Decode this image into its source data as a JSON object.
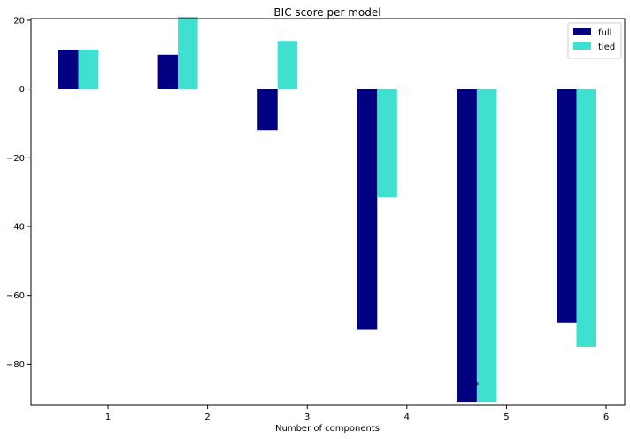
{
  "chart_data": {
    "type": "bar",
    "title": "BIC score per model",
    "xlabel": "Number of components",
    "ylabel": "",
    "categories": [
      "1",
      "2",
      "3",
      "4",
      "5",
      "6"
    ],
    "series": [
      {
        "name": "full",
        "color": "#000080",
        "values": [
          11.5,
          10,
          -12,
          -70,
          -91,
          -68
        ]
      },
      {
        "name": "tied",
        "color": "#40e0d0",
        "values": [
          11.5,
          21,
          14,
          -31.5,
          -91,
          -75
        ]
      }
    ],
    "ylim": [
      -92,
      20.5
    ],
    "yticks": [
      20,
      0,
      -20,
      -40,
      -60,
      -80
    ],
    "grid": false,
    "legend_position": "top-right",
    "annotation": {
      "text": "*",
      "category": "5",
      "value": -86
    }
  }
}
